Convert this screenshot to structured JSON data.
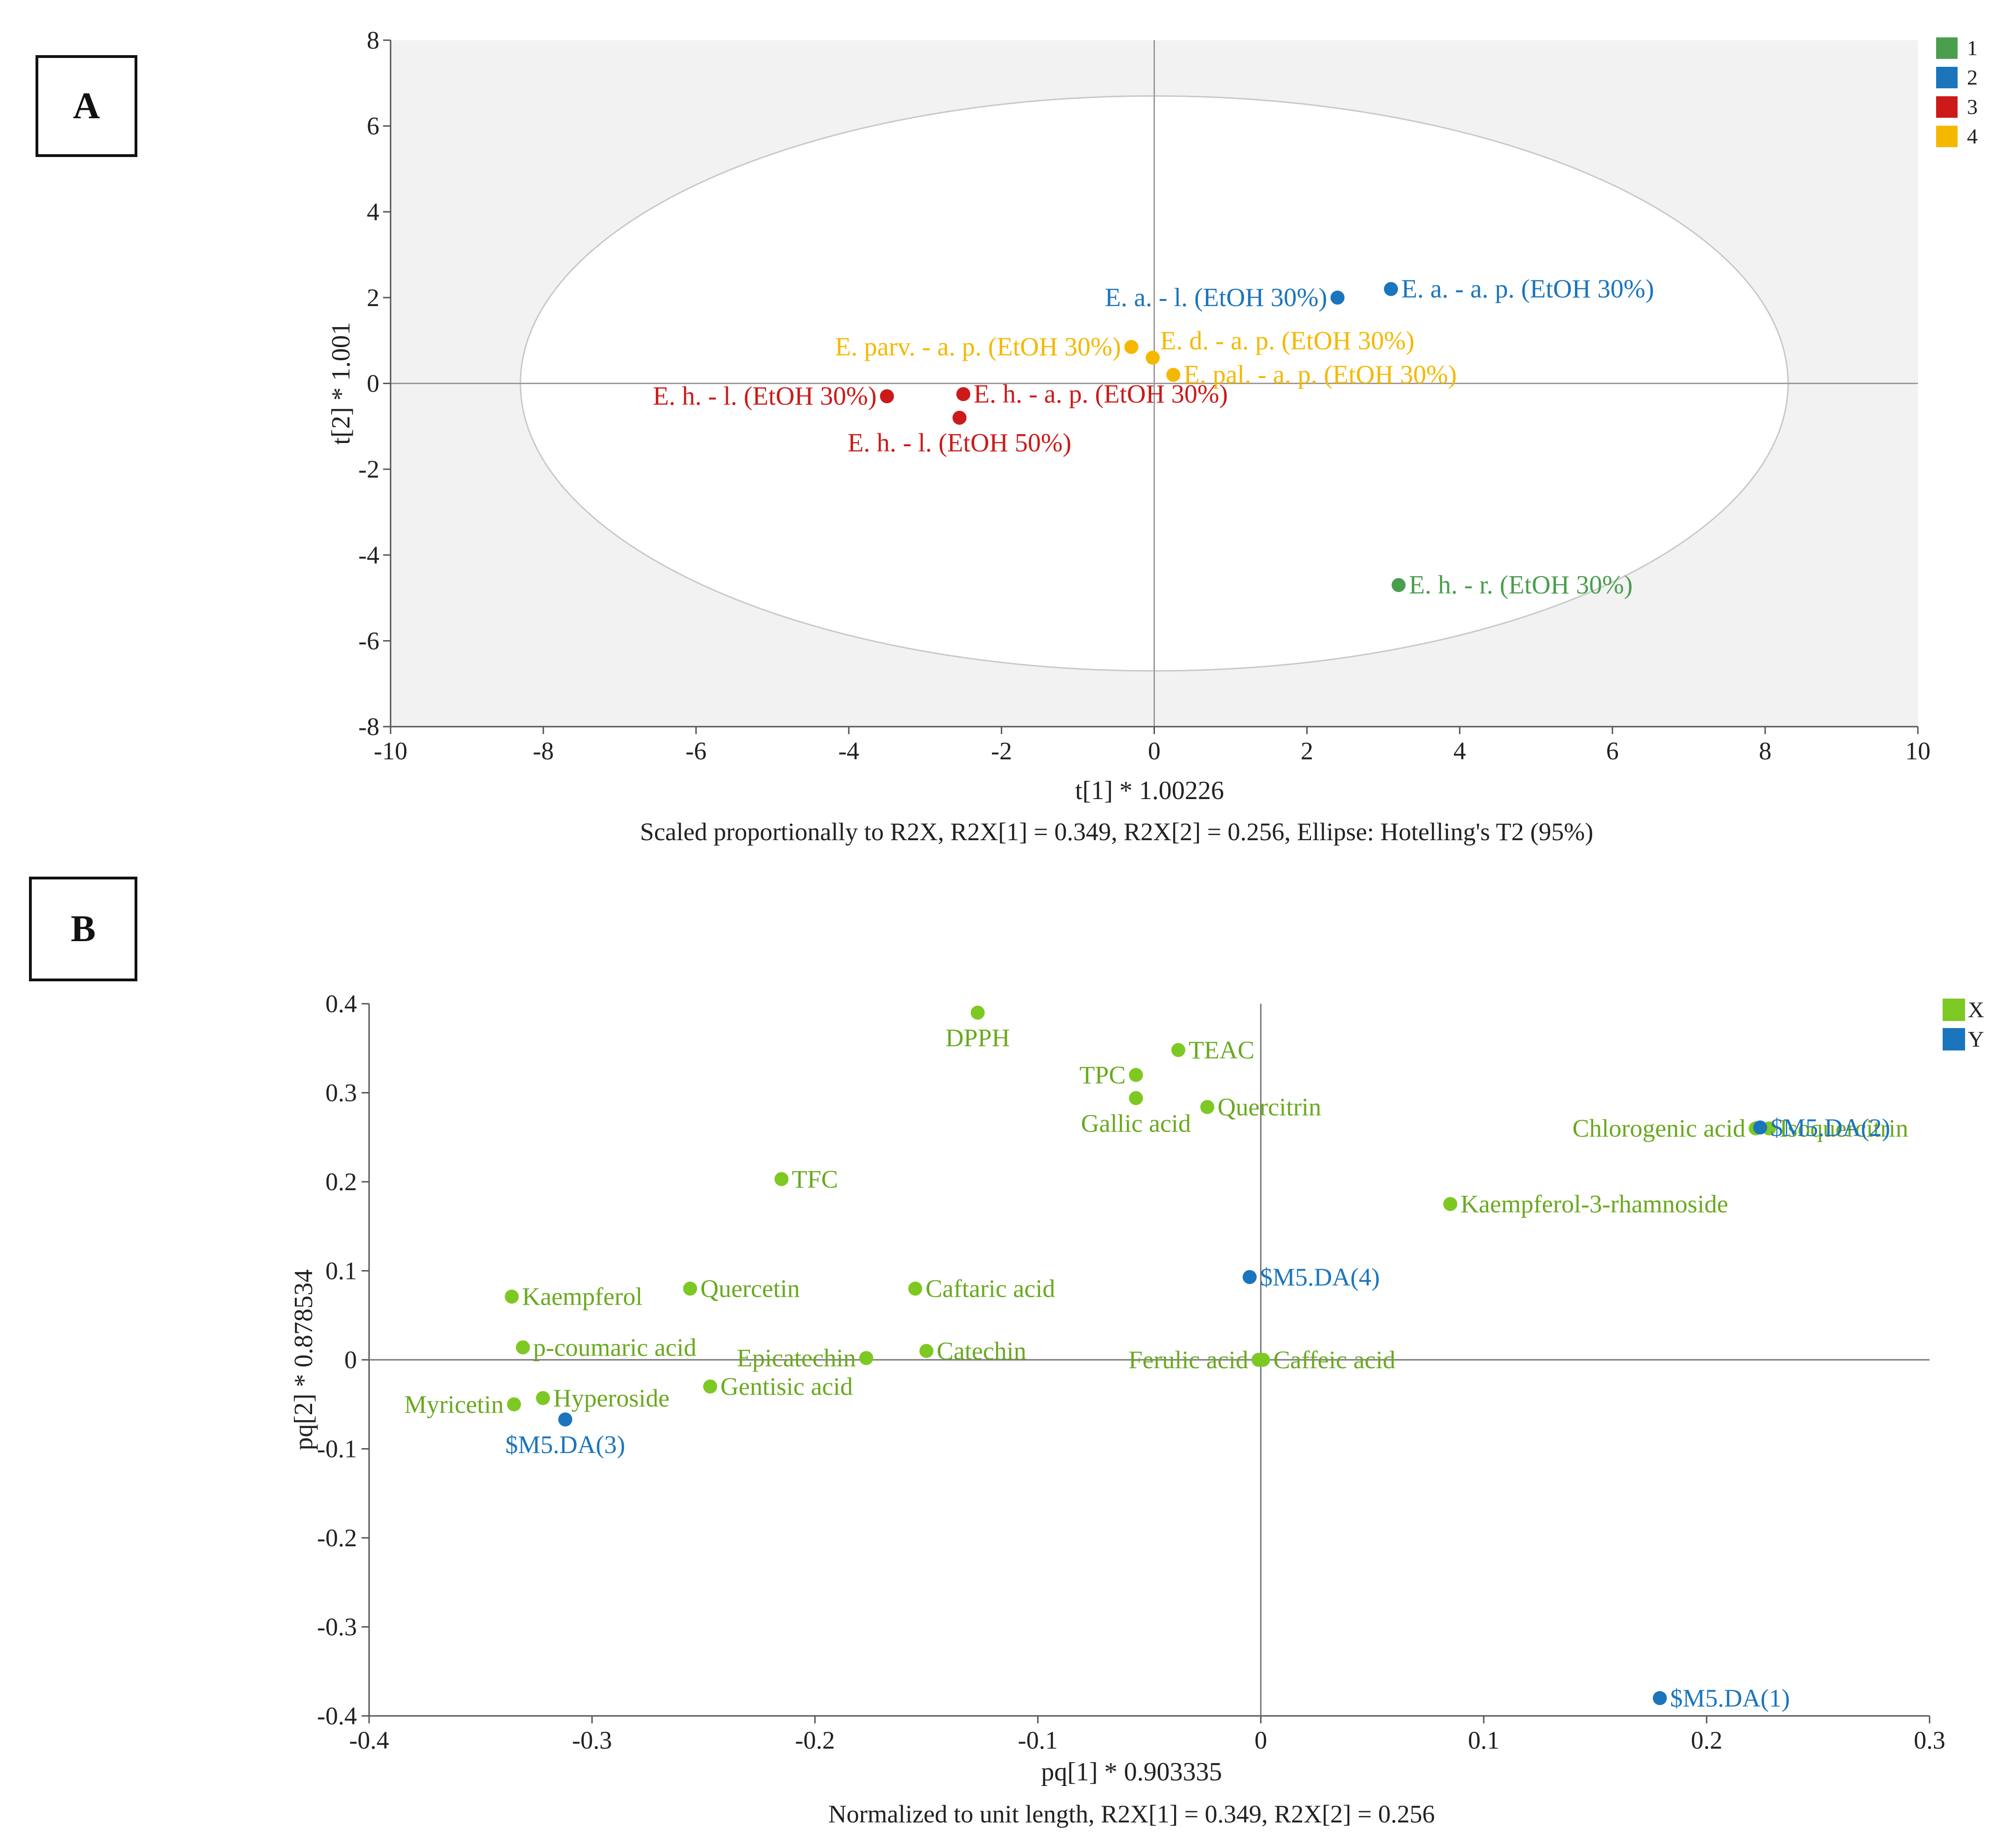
{
  "panels": [
    {
      "label": "A",
      "chart_data": {
        "type": "scatter",
        "xlabel": "t[1] * 1.00226",
        "ylabel": "t[2] * 1.001",
        "caption": "Scaled proportionally to R2X, R2X[1] = 0.349, R2X[2] = 0.256,  Ellipse: Hotelling's T2 (95%)",
        "xlim": [
          -10,
          10
        ],
        "ylim": [
          -8,
          8
        ],
        "xticks": [
          -10,
          -8,
          -6,
          -4,
          -2,
          0,
          2,
          4,
          6,
          8,
          10
        ],
        "yticks": [
          -8,
          -6,
          -4,
          -2,
          0,
          2,
          4,
          6,
          8
        ],
        "ellipse": {
          "cx": 0,
          "cy": 0,
          "rx": 8.3,
          "ry": 6.7
        },
        "legend": [
          {
            "name": "1",
            "color": "#4a9e4e"
          },
          {
            "name": "2",
            "color": "#1b75bc"
          },
          {
            "name": "3",
            "color": "#cc1a1a"
          },
          {
            "name": "4",
            "color": "#f5b800"
          }
        ],
        "points": [
          {
            "label": "E. a. - l. (EtOH 30%)",
            "x": 2.4,
            "y": 2.0,
            "group": "2",
            "anchor": "left"
          },
          {
            "label": "E. a. - a. p. (EtOH 30%)",
            "x": 3.1,
            "y": 2.2,
            "group": "2",
            "anchor": "right"
          },
          {
            "label": "E. parv. - a. p. (EtOH 30%)",
            "x": -0.3,
            "y": 0.85,
            "group": "4",
            "anchor": "left"
          },
          {
            "label": "E. d. - a. p. (EtOH 30%)",
            "x": -0.02,
            "y": 0.6,
            "group": "4",
            "anchor": "right-up"
          },
          {
            "label": "E. pal. - a. p. (EtOH 30%)",
            "x": 0.25,
            "y": 0.2,
            "group": "4",
            "anchor": "right"
          },
          {
            "label": "E. h. - l. (EtOH 30%)",
            "x": -3.5,
            "y": -0.3,
            "group": "3",
            "anchor": "left"
          },
          {
            "label": "E. h. - a. p. (EtOH 30%)",
            "x": -2.5,
            "y": -0.25,
            "group": "3",
            "anchor": "right"
          },
          {
            "label": "E. h. - l. (EtOH 50%)",
            "x": -2.55,
            "y": -0.8,
            "group": "3",
            "anchor": "below"
          },
          {
            "label": "E. h. - r. (EtOH 30%)",
            "x": 3.2,
            "y": -4.7,
            "group": "1",
            "anchor": "right"
          }
        ]
      }
    },
    {
      "label": "B",
      "chart_data": {
        "type": "scatter",
        "xlabel": "pq[1] * 0.903335",
        "ylabel": "pq[2] * 0.878534",
        "caption": "Normalized to unit length, R2X[1] = 0.349, R2X[2] = 0.256",
        "xlim": [
          -0.4,
          0.3
        ],
        "ylim": [
          -0.4,
          0.4
        ],
        "xticks": [
          "-0.4",
          "-0.3",
          "-0.2",
          "-0.1",
          "0",
          "0.1",
          "0.2",
          "0.3"
        ],
        "yticks": [
          "0.4",
          "0.3",
          "0.2",
          "0.1",
          "0",
          "-0.1",
          "-0.2",
          "-0.3",
          "-0.4"
        ],
        "legend": [
          {
            "name": "X",
            "color": "#7ec824"
          },
          {
            "name": "Y",
            "color": "#1b75bc"
          }
        ],
        "points": [
          {
            "label": "DPPH",
            "x": -0.127,
            "y": 0.39,
            "group": "X",
            "anchor": "below"
          },
          {
            "label": "TEAC",
            "x": -0.037,
            "y": 0.348,
            "group": "X",
            "anchor": "right"
          },
          {
            "label": "TPC",
            "x": -0.056,
            "y": 0.32,
            "group": "X",
            "anchor": "left"
          },
          {
            "label": "Gallic acid",
            "x": -0.056,
            "y": 0.294,
            "group": "X",
            "anchor": "below"
          },
          {
            "label": "Quercitrin",
            "x": -0.024,
            "y": 0.284,
            "group": "X",
            "anchor": "right"
          },
          {
            "label": "Chlorogenic acid",
            "x": 0.222,
            "y": 0.26,
            "group": "X",
            "anchor": "left"
          },
          {
            "label": "Isoquercitrin",
            "x": 0.228,
            "y": 0.26,
            "group": "X",
            "anchor": "right"
          },
          {
            "label": "$M5.DA(2)",
            "x": 0.224,
            "y": 0.261,
            "group": "Y",
            "anchor": "right"
          },
          {
            "label": "TFC",
            "x": -0.215,
            "y": 0.203,
            "group": "X",
            "anchor": "right"
          },
          {
            "label": "Kaempferol-3-rhamnoside",
            "x": 0.085,
            "y": 0.175,
            "group": "X",
            "anchor": "right"
          },
          {
            "label": "$M5.DA(4)",
            "x": -0.005,
            "y": 0.093,
            "group": "Y",
            "anchor": "right"
          },
          {
            "label": "Caftaric acid",
            "x": -0.155,
            "y": 0.08,
            "group": "X",
            "anchor": "right"
          },
          {
            "label": "Quercetin",
            "x": -0.256,
            "y": 0.08,
            "group": "X",
            "anchor": "right"
          },
          {
            "label": "Kaempferol",
            "x": -0.336,
            "y": 0.071,
            "group": "X",
            "anchor": "right"
          },
          {
            "label": "p-coumaric acid",
            "x": -0.331,
            "y": 0.014,
            "group": "X",
            "anchor": "right"
          },
          {
            "label": "Catechin",
            "x": -0.15,
            "y": 0.01,
            "group": "X",
            "anchor": "right"
          },
          {
            "label": "Epicatechin",
            "x": -0.177,
            "y": 0.002,
            "group": "X",
            "anchor": "left"
          },
          {
            "label": "Ferulic acid",
            "x": -0.001,
            "y": 0.0,
            "group": "X",
            "anchor": "left"
          },
          {
            "label": "Caffeic acid",
            "x": 0.001,
            "y": 0.0,
            "group": "X",
            "anchor": "right"
          },
          {
            "label": "Gentisic acid",
            "x": -0.247,
            "y": -0.03,
            "group": "X",
            "anchor": "right"
          },
          {
            "label": "Hyperoside",
            "x": -0.322,
            "y": -0.043,
            "group": "X",
            "anchor": "right"
          },
          {
            "label": "Myricetin",
            "x": -0.335,
            "y": -0.05,
            "group": "X",
            "anchor": "left"
          },
          {
            "label": "$M5.DA(3)",
            "x": -0.312,
            "y": -0.067,
            "group": "Y",
            "anchor": "below"
          },
          {
            "label": "$M5.DA(1)",
            "x": 0.179,
            "y": -0.38,
            "group": "Y",
            "anchor": "right"
          }
        ]
      }
    }
  ]
}
